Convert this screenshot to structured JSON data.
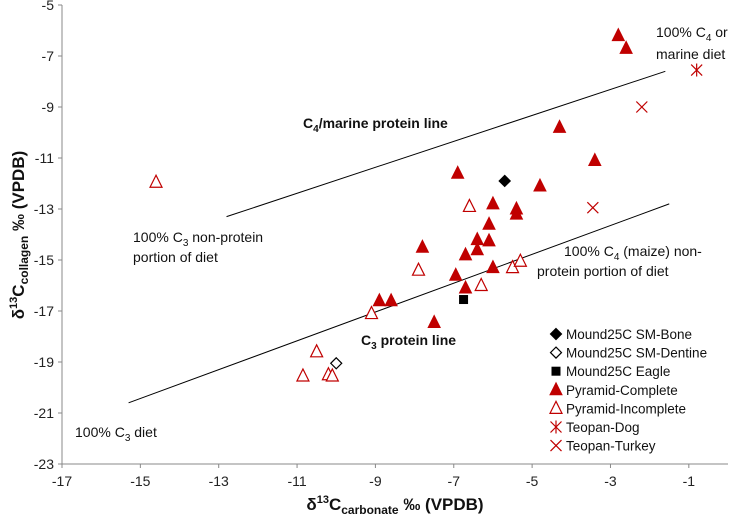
{
  "chart_data": {
    "type": "scatter",
    "xlabel": {
      "main": "δ",
      "sup": "13",
      "mid": "C",
      "sub": "carbonate",
      "rest": " ‰ (VPDB)"
    },
    "ylabel": {
      "main": "δ",
      "sup": "13",
      "mid": "C",
      "sub": "collagen",
      "rest": " ‰ (VPDB)"
    },
    "xlim": [
      -17,
      0
    ],
    "ylim": [
      -23,
      -5
    ],
    "xticks": [
      -17,
      -15,
      -13,
      -11,
      -9,
      -7,
      -5,
      -3,
      -1
    ],
    "yticks": [
      -5,
      -7,
      -9,
      -11,
      -13,
      -15,
      -17,
      -19,
      -21,
      -23
    ],
    "grid": false,
    "legend_position": "bottom-right",
    "colors": {
      "black": "#000000",
      "red": "#c00000",
      "line": "#000000"
    },
    "lines": [
      {
        "name": "C4/marine protein line",
        "x": [
          -12.8,
          -1.6
        ],
        "y": [
          -13.3,
          -7.6
        ]
      },
      {
        "name": "C3 protein line",
        "x": [
          -15.3,
          -1.5
        ],
        "y": [
          -20.6,
          -12.8
        ]
      }
    ],
    "annotations": {
      "c4_corner": {
        "line1_pre": "100% C",
        "line1_sub": "4",
        "line1_post": " or",
        "line2": "marine diet"
      },
      "c4_line_label": {
        "pre": "C",
        "sub": "4",
        "post": "/marine protein line"
      },
      "c3_nonprotein": {
        "line1_pre": "100% C",
        "line1_sub": "3",
        "line1_post": " non-protein",
        "line2": "portion of diet"
      },
      "c4_maize": {
        "line1_pre": "100% C",
        "line1_sub": "4",
        "line1_post": " (maize) non-",
        "line2": "protein portion of diet"
      },
      "c3_line_label": {
        "pre": "C",
        "sub": "3",
        "post": " protein line"
      },
      "c3_diet": {
        "pre": "100% C",
        "sub": "3",
        "post": " diet"
      }
    },
    "series": [
      {
        "name": "Mound25C SM-Bone",
        "marker": "diamond-filled",
        "color": "#000000",
        "points": [
          [
            -5.7,
            -11.9
          ]
        ]
      },
      {
        "name": "Mound25C SM-Dentine",
        "marker": "diamond-open",
        "color": "#000000",
        "points": [
          [
            -10.0,
            -19.05
          ]
        ]
      },
      {
        "name": "Mound25C Eagle",
        "marker": "square-filled",
        "color": "#000000",
        "points": [
          [
            -6.75,
            -16.55
          ]
        ]
      },
      {
        "name": "Pyramid-Complete",
        "marker": "triangle-filled",
        "color": "#c00000",
        "points": [
          [
            -2.8,
            -6.2
          ],
          [
            -2.6,
            -6.7
          ],
          [
            -4.3,
            -9.8
          ],
          [
            -3.4,
            -11.1
          ],
          [
            -6.9,
            -11.6
          ],
          [
            -4.8,
            -12.1
          ],
          [
            -6.0,
            -12.8
          ],
          [
            -5.4,
            -13.0
          ],
          [
            -5.4,
            -13.2
          ],
          [
            -6.1,
            -13.6
          ],
          [
            -6.1,
            -14.25
          ],
          [
            -6.4,
            -14.2
          ],
          [
            -6.4,
            -14.6
          ],
          [
            -7.8,
            -14.5
          ],
          [
            -6.7,
            -14.8
          ],
          [
            -6.0,
            -15.3
          ],
          [
            -6.95,
            -15.6
          ],
          [
            -6.7,
            -16.1
          ],
          [
            -8.9,
            -16.6
          ],
          [
            -8.6,
            -16.6
          ],
          [
            -7.5,
            -17.45
          ]
        ]
      },
      {
        "name": "Pyramid-Incomplete",
        "marker": "triangle-open",
        "color": "#c00000",
        "points": [
          [
            -14.6,
            -11.95
          ],
          [
            -6.6,
            -12.9
          ],
          [
            -7.9,
            -15.4
          ],
          [
            -5.5,
            -15.3
          ],
          [
            -5.3,
            -15.05
          ],
          [
            -6.3,
            -16.0
          ],
          [
            -9.1,
            -17.1
          ],
          [
            -10.5,
            -18.6
          ],
          [
            -10.85,
            -19.55
          ],
          [
            -10.2,
            -19.5
          ],
          [
            -10.1,
            -19.55
          ]
        ]
      },
      {
        "name": "Teopan-Dog",
        "marker": "star",
        "color": "#c00000",
        "points": [
          [
            -0.8,
            -7.55
          ]
        ]
      },
      {
        "name": "Teopan-Turkey",
        "marker": "x",
        "color": "#c00000",
        "points": [
          [
            -2.2,
            -9.0
          ],
          [
            -3.45,
            -12.95
          ]
        ]
      }
    ]
  }
}
